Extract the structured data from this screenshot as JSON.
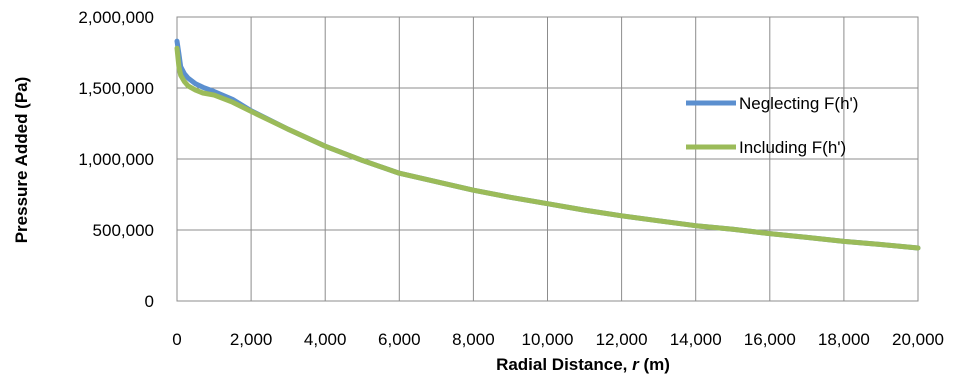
{
  "chart_data": {
    "type": "line",
    "title": "",
    "xlabel": "Radial Distance, ",
    "xlabel_var": "r",
    "xlabel_unit": " (m)",
    "ylabel": "Pressure Added (Pa)",
    "xlim": [
      0,
      20000
    ],
    "ylim": [
      0,
      2000000
    ],
    "x_ticks": [
      0,
      2000,
      4000,
      6000,
      8000,
      10000,
      12000,
      14000,
      16000,
      18000,
      20000
    ],
    "x_tick_labels": [
      "0",
      "2,000",
      "4,000",
      "6,000",
      "8,000",
      "10,000",
      "12,000",
      "14,000",
      "16,000",
      "18,000",
      "20,000"
    ],
    "y_ticks": [
      0,
      500000,
      1000000,
      1500000,
      2000000
    ],
    "y_tick_labels": [
      "0",
      "500,000",
      "1,000,000",
      "1,500,000",
      "2,000,000"
    ],
    "grid": true,
    "legend_position": "right",
    "series": [
      {
        "name": "Neglecting F(h')",
        "color": "#5B8FCF",
        "x": [
          0,
          50,
          100,
          200,
          300,
          500,
          700,
          1000,
          1500,
          2000,
          3000,
          4000,
          5000,
          6000,
          7000,
          8000,
          9000,
          10000,
          11000,
          12000,
          13000,
          14000,
          15000,
          16000,
          17000,
          18000,
          19000,
          20000
        ],
        "y": [
          1830000,
          1740000,
          1650000,
          1600000,
          1570000,
          1530000,
          1505000,
          1475000,
          1420000,
          1340000,
          1210000,
          1090000,
          990000,
          900000,
          840000,
          780000,
          730000,
          685000,
          640000,
          600000,
          565000,
          530000,
          505000,
          475000,
          448000,
          420000,
          398000,
          373000
        ]
      },
      {
        "name": "Including F(h')",
        "color": "#9BBB59",
        "x": [
          0,
          50,
          100,
          200,
          300,
          500,
          700,
          1000,
          1500,
          2000,
          3000,
          4000,
          5000,
          6000,
          7000,
          8000,
          9000,
          10000,
          11000,
          12000,
          13000,
          14000,
          15000,
          16000,
          17000,
          18000,
          19000,
          20000
        ],
        "y": [
          1780000,
          1650000,
          1590000,
          1545000,
          1515000,
          1485000,
          1465000,
          1450000,
          1400000,
          1335000,
          1210000,
          1090000,
          990000,
          900000,
          840000,
          780000,
          730000,
          685000,
          640000,
          600000,
          565000,
          530000,
          505000,
          475000,
          448000,
          420000,
          398000,
          373000
        ]
      }
    ]
  }
}
